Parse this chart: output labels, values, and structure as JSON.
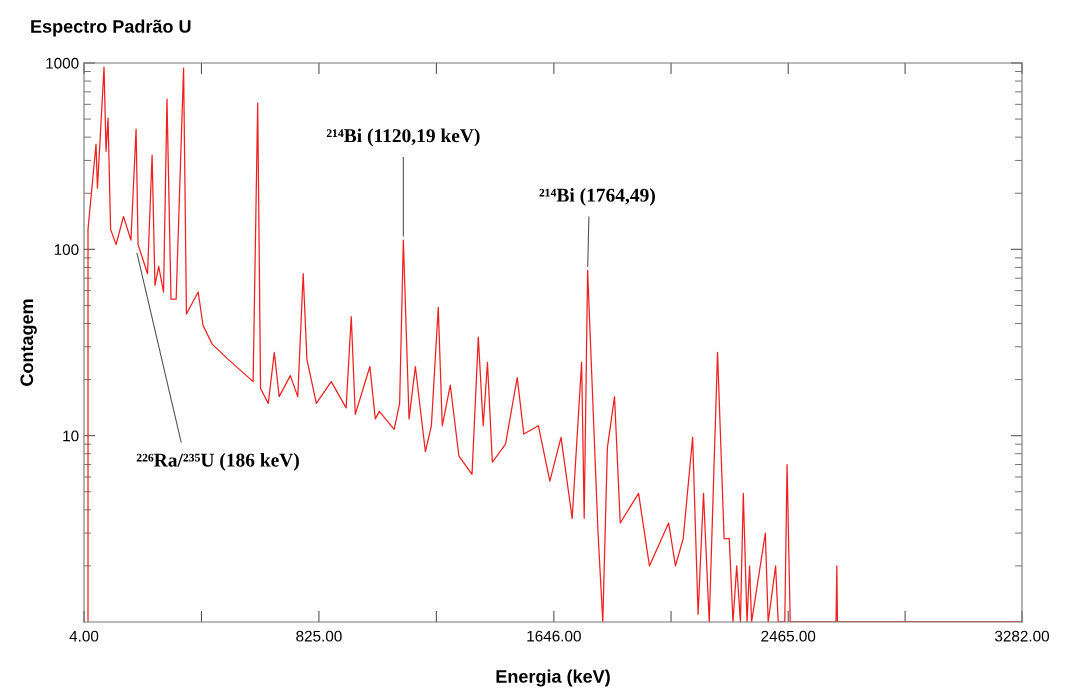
{
  "chart_data": {
    "type": "line",
    "title": "Espectro Padrão U",
    "xlabel": "Energia (keV)",
    "ylabel": "Contagem",
    "log": "y",
    "grid": false,
    "legend": false,
    "marker": "none",
    "line_style": "solid",
    "xlim": [
      4,
      3282
    ],
    "ylim": [
      1,
      1000
    ],
    "xticks": [
      {
        "value": 4,
        "label": "4.00"
      },
      {
        "value": 414.5,
        "label": null
      },
      {
        "value": 825,
        "label": "825.00"
      },
      {
        "value": 1235.5,
        "label": null
      },
      {
        "value": 1646,
        "label": "1646.00"
      },
      {
        "value": 2055.5,
        "label": null
      },
      {
        "value": 2465,
        "label": "2465.00"
      },
      {
        "value": 2873.5,
        "label": null
      },
      {
        "value": 3282,
        "label": "3282.00"
      }
    ],
    "yticks": [
      10,
      100,
      1000
    ],
    "annotations": [
      {
        "text": "²¹⁴Bi (1120,19 keV)",
        "x": 1120,
        "y": 112
      },
      {
        "text": "²¹⁴Bi (1764,49)",
        "x": 1764,
        "y": 77
      },
      {
        "text": "²²⁶Ra/²³⁵U (186 keV)",
        "x": 186,
        "y": 100
      }
    ],
    "series": [
      {
        "color": "#f02020",
        "x": [
          18,
          18,
          46,
          51,
          74,
          81,
          88,
          97,
          116,
          142,
          168,
          186,
          193,
          226,
          242,
          252,
          265,
          282,
          294,
          308,
          326,
          352,
          362,
          403,
          420,
          452,
          504,
          557,
          595,
          611,
          621,
          648,
          669,
          686,
          725,
          751,
          770,
          783,
          816,
          868,
          920,
          938,
          952,
          1003,
          1022,
          1036,
          1088,
          1107,
          1120,
          1140,
          1162,
          1197,
          1218,
          1242,
          1256,
          1284,
          1314,
          1360,
          1382,
          1399,
          1414,
          1431,
          1477,
          1518,
          1541,
          1592,
          1632,
          1671,
          1710,
          1743,
          1752,
          1764,
          1800,
          1817,
          1833,
          1858,
          1878,
          1942,
          1980,
          2047,
          2071,
          2098,
          2131,
          2150,
          2169,
          2189,
          2218,
          2241,
          2259,
          2272,
          2285,
          2298,
          2308,
          2321,
          2330,
          2337,
          2385,
          2395,
          2421,
          2430,
          2453,
          2461,
          2472,
          2632,
          2635,
          2637,
          3282
        ],
        "values": [
          1,
          128,
          367,
          213,
          950,
          336,
          506,
          128,
          106,
          150,
          112,
          442,
          106,
          74,
          320,
          64,
          81,
          59,
          640,
          54,
          54,
          940,
          45,
          59,
          39,
          31,
          26,
          22,
          19.5,
          609,
          17.9,
          14.9,
          28,
          16.2,
          21,
          16.2,
          74,
          25.7,
          14.9,
          19.5,
          14.1,
          43.6,
          13,
          23.5,
          12.3,
          13.5,
          10.8,
          14.9,
          112,
          12.3,
          23.5,
          8.2,
          11.3,
          48.8,
          11.3,
          18.7,
          7.8,
          6.2,
          33.8,
          11.3,
          24.7,
          7.2,
          9,
          20.5,
          10.2,
          11.3,
          5.7,
          9.8,
          3.6,
          24.7,
          3.6,
          77,
          3.1,
          1,
          8.6,
          16.2,
          3.4,
          4.9,
          2,
          3.4,
          2,
          2.8,
          9.8,
          1.1,
          4.9,
          1,
          28,
          2.8,
          2.8,
          1,
          2,
          1,
          4.9,
          1,
          2,
          1,
          3,
          1,
          2,
          1,
          1,
          7,
          1,
          1,
          2,
          1,
          1
        ]
      }
    ]
  }
}
